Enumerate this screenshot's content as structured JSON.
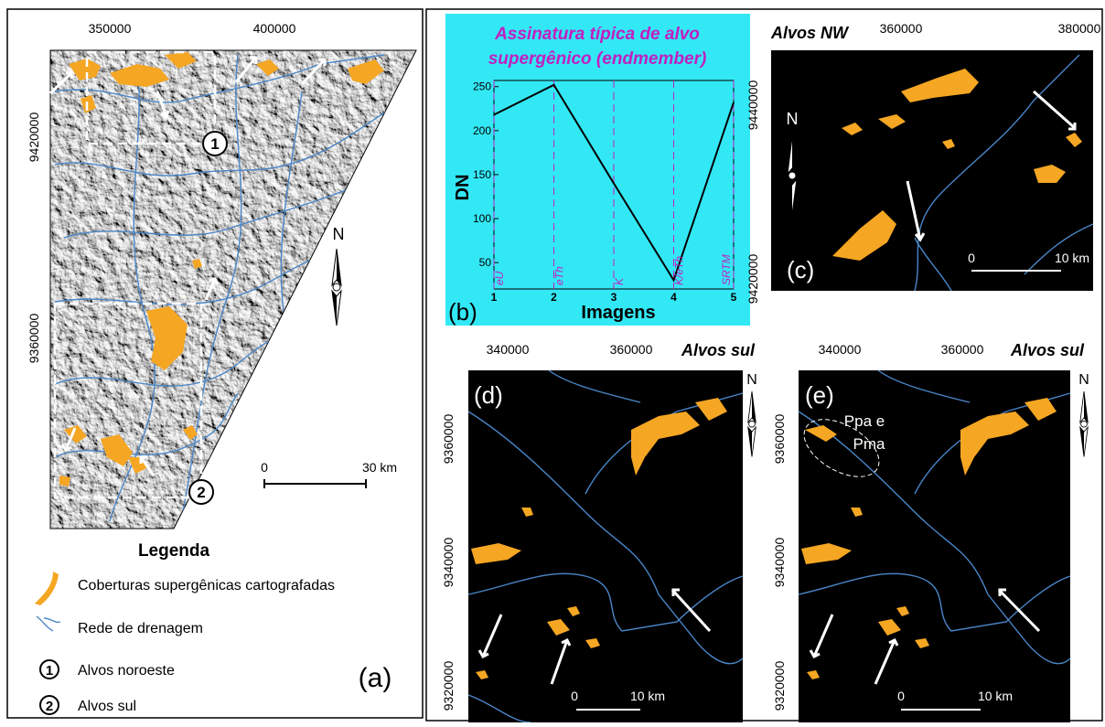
{
  "panel_a": {
    "x_ticks": [
      "350000",
      "400000"
    ],
    "y_ticks": [
      "9420000",
      "9360000"
    ],
    "target_1": "1",
    "target_2": "2",
    "north": "N",
    "scale_start": "0",
    "scale_end": "30 km",
    "label": "(a)"
  },
  "legend": {
    "title": "Legenda",
    "items": [
      "Coberturas supergênicas cartografadas",
      "Rede de drenagem",
      "Alvos noroeste",
      "Alvos sul"
    ],
    "marker_1": "1",
    "marker_2": "2"
  },
  "chart_data": {
    "type": "line",
    "title": [
      "Assinatura típica de alvo",
      "supergênico (endmember)"
    ],
    "x": [
      1,
      2,
      3,
      4,
      5
    ],
    "values": [
      218,
      252,
      140,
      30,
      232
    ],
    "color": "#000000",
    "background": "#33e8f5",
    "annotations": [
      "eU",
      "eTh",
      "K",
      "K/eTh",
      "SRTM"
    ],
    "xlabel": "Imagens",
    "ylabel": "DN",
    "xlim": [
      1,
      5
    ],
    "ylim": [
      20,
      257
    ],
    "xticks": [
      1,
      2,
      3,
      4,
      5
    ],
    "yticks": [
      50,
      100,
      150,
      200,
      250
    ],
    "label": "(b)"
  },
  "panel_c": {
    "title": "Alvos NW",
    "x_ticks": [
      "360000",
      "380000"
    ],
    "y_ticks": [
      "9440000",
      "9420000"
    ],
    "north": "N",
    "scale_start": "0",
    "scale_end": "10 km",
    "label": "(c)"
  },
  "panel_d": {
    "title": "Alvos sul",
    "x_ticks": [
      "340000",
      "360000"
    ],
    "y_ticks": [
      "9360000",
      "9340000",
      "9320000"
    ],
    "north": "N",
    "scale_start": "0",
    "scale_end": "10 km",
    "label": "(d)"
  },
  "panel_e": {
    "title": "Alvos sul",
    "x_ticks": [
      "340000",
      "360000"
    ],
    "y_ticks": [
      "9360000",
      "9340000",
      "9320000"
    ],
    "north": "N",
    "scale_start": "0",
    "scale_end": "10 km",
    "label": "(e)",
    "annotation": [
      "Ppa e",
      "Pma"
    ]
  }
}
